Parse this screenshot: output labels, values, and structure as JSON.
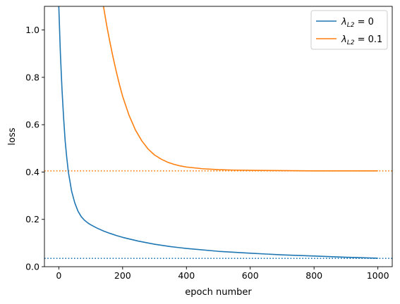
{
  "chart_data": {
    "type": "line",
    "xlabel": "epoch number",
    "ylabel": "loss",
    "xlim": [
      -45,
      1045
    ],
    "ylim": [
      0.0,
      1.1
    ],
    "xticks": [
      0,
      200,
      400,
      600,
      800,
      1000
    ],
    "yticks": [
      0.0,
      0.2,
      0.4,
      0.6,
      0.8,
      1.0
    ],
    "xtick_labels": [
      "0",
      "200",
      "400",
      "600",
      "800",
      "1000"
    ],
    "ytick_labels": [
      "0.0",
      "0.2",
      "0.4",
      "0.6",
      "0.8",
      "1.0"
    ],
    "grid": false,
    "legend_position": "top-right",
    "series": [
      {
        "name": "λL2 = 0",
        "legend_main": "λ",
        "legend_sub": "L2",
        "legend_rest": " = 0",
        "color": "#1f77b4",
        "x": [
          0,
          5,
          10,
          15,
          20,
          25,
          30,
          35,
          40,
          50,
          60,
          70,
          80,
          90,
          100,
          120,
          140,
          160,
          180,
          200,
          250,
          300,
          350,
          400,
          500,
          600,
          700,
          800,
          900,
          1000
        ],
        "y": [
          1.1,
          0.9,
          0.75,
          0.63,
          0.53,
          0.46,
          0.4,
          0.36,
          0.32,
          0.27,
          0.235,
          0.212,
          0.197,
          0.186,
          0.177,
          0.163,
          0.151,
          0.141,
          0.132,
          0.124,
          0.108,
          0.095,
          0.085,
          0.077,
          0.065,
          0.057,
          0.05,
          0.045,
          0.04,
          0.036
        ]
      },
      {
        "name": "λL2 = 0.1",
        "legend_main": "λ",
        "legend_sub": "L2",
        "legend_rest": " = 0.1",
        "color": "#ff7f0e",
        "x": [
          140,
          150,
          160,
          170,
          180,
          190,
          200,
          220,
          240,
          260,
          280,
          300,
          320,
          340,
          360,
          380,
          400,
          450,
          500,
          550,
          600,
          700,
          800,
          900,
          1000
        ],
        "y": [
          1.1,
          1.02,
          0.95,
          0.885,
          0.825,
          0.77,
          0.72,
          0.64,
          0.578,
          0.532,
          0.497,
          0.472,
          0.455,
          0.442,
          0.433,
          0.426,
          0.421,
          0.414,
          0.41,
          0.408,
          0.407,
          0.406,
          0.405,
          0.405,
          0.405
        ]
      }
    ],
    "reference_lines": [
      {
        "y": 0.035,
        "style": "dotted",
        "color": "#1f77b4"
      },
      {
        "y": 0.405,
        "style": "dotted",
        "color": "#ff7f0e"
      }
    ]
  }
}
